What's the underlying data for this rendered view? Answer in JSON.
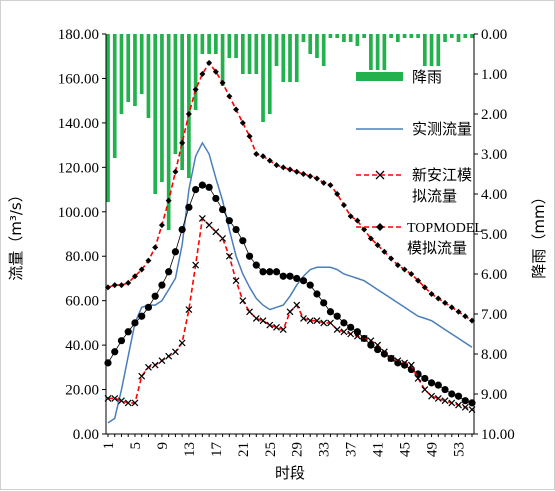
{
  "chart_data": {
    "type": "line",
    "title": "",
    "xlabel": "时段",
    "ylabel_left": "流量（m³/s）",
    "ylabel_right": "降雨（mm）",
    "ylim_left": [
      0,
      180
    ],
    "ylim_right_inverted": [
      0,
      10
    ],
    "grid": false,
    "legend_position": "right",
    "x": [
      1,
      2,
      3,
      4,
      5,
      6,
      7,
      8,
      9,
      10,
      11,
      12,
      13,
      14,
      15,
      16,
      17,
      18,
      19,
      20,
      21,
      22,
      23,
      24,
      25,
      26,
      27,
      28,
      29,
      30,
      31,
      32,
      33,
      34,
      35,
      36,
      37,
      38,
      39,
      40,
      41,
      42,
      43,
      44,
      45,
      46,
      47,
      48,
      49,
      50,
      51,
      52,
      53,
      54,
      55
    ],
    "x_tick_labels": [
      "1",
      "5",
      "9",
      "13",
      "17",
      "21",
      "25",
      "29",
      "33",
      "37",
      "41",
      "45",
      "49",
      "53"
    ],
    "y_left_tick_labels": [
      "0.00",
      "20.00",
      "40.00",
      "60.00",
      "80.00",
      "100.00",
      "120.00",
      "140.00",
      "160.00",
      "180.00"
    ],
    "y_right_tick_labels": [
      "0.00",
      "1.00",
      "2.00",
      "3.00",
      "4.00",
      "5.00",
      "6.00",
      "7.00",
      "8.00",
      "9.00",
      "10.00"
    ],
    "series": [
      {
        "name": "降雨",
        "kind": "bar",
        "axis": "right",
        "color": "#22b14c",
        "values": [
          4.2,
          3.1,
          2.0,
          1.7,
          1.8,
          1.5,
          2.1,
          4.0,
          3.7,
          4.9,
          3.0,
          3.4,
          3.6,
          1.9,
          0.5,
          0.5,
          0.5,
          1.3,
          0.6,
          0.6,
          1.0,
          1.0,
          1.0,
          2.2,
          2.0,
          0.8,
          1.2,
          1.2,
          1.2,
          0.2,
          0.5,
          0.6,
          0.8,
          0.1,
          0.1,
          0.2,
          0.2,
          0.3,
          0.1,
          0.9,
          0.9,
          0.9,
          0.1,
          0.2,
          0.1,
          0.1,
          0.1,
          0.8,
          0.8,
          0.8,
          0.2,
          0.1,
          0.2,
          0.1,
          0.1
        ]
      },
      {
        "name": "实测流量",
        "kind": "line",
        "axis": "left",
        "color": "#4a7ebb",
        "values": [
          5,
          7,
          20,
          35,
          50,
          57,
          58,
          58,
          60,
          65,
          70,
          85,
          110,
          125,
          131,
          126,
          115,
          105,
          92,
          80,
          72,
          66,
          61,
          58,
          56,
          57,
          58,
          62,
          67,
          71,
          74,
          75,
          75,
          75,
          74,
          72,
          71,
          70,
          69,
          67,
          65,
          63,
          61,
          59,
          57,
          55,
          53,
          52,
          51,
          49,
          47,
          45,
          43,
          41,
          39
        ]
      },
      {
        "name": "新安江模拟流量",
        "kind": "line",
        "axis": "left",
        "color": "#ff0000",
        "dash": true,
        "marker": "x",
        "values": [
          16,
          16,
          15,
          14,
          14,
          26,
          30,
          31,
          33,
          35,
          37,
          41,
          56,
          76,
          97,
          94,
          91,
          88,
          80,
          69,
          60,
          55,
          52,
          51,
          49,
          48,
          47,
          55,
          58,
          52,
          51,
          51,
          50,
          50,
          47,
          46,
          45,
          44,
          43,
          42,
          40,
          37,
          34,
          33,
          32,
          31,
          25,
          20,
          17,
          16,
          15,
          14,
          13,
          12,
          11
        ]
      },
      {
        "name": "TOPMODEL模拟流量",
        "kind": "line",
        "axis": "left",
        "color": "#ff0000",
        "dash": true,
        "marker": "diamond",
        "values": [
          66,
          67,
          67,
          68,
          71,
          74,
          78,
          84,
          94,
          105,
          118,
          131,
          144,
          155,
          162,
          167,
          163,
          158,
          152,
          146,
          140,
          134,
          126,
          125,
          123,
          121,
          120,
          119,
          118,
          117,
          116,
          115,
          113,
          112,
          108,
          103,
          98,
          96,
          92,
          88,
          85,
          82,
          79,
          76,
          74,
          72,
          69,
          66,
          63,
          61,
          59,
          57,
          55,
          53,
          51
        ]
      },
      {
        "name": "",
        "kind": "line",
        "axis": "left",
        "color": "#000000",
        "marker": "dot",
        "values": [
          32,
          37,
          42,
          46,
          50,
          53,
          57,
          62,
          67,
          73,
          82,
          92,
          102,
          110,
          112,
          111,
          106,
          101,
          96,
          92,
          87,
          80,
          76,
          73,
          73,
          73,
          71,
          71,
          70,
          69,
          67,
          63,
          59,
          55,
          53,
          50,
          48,
          46,
          43,
          40,
          38,
          36,
          34,
          32,
          31,
          29,
          27,
          25,
          23,
          22,
          20,
          18,
          17,
          15,
          14
        ]
      }
    ]
  }
}
